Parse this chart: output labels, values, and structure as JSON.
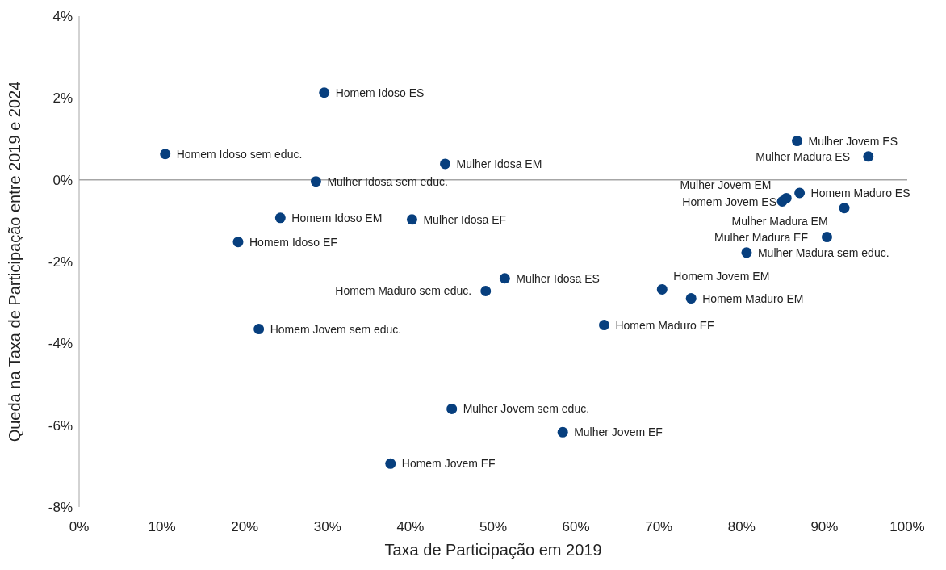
{
  "chart_data": {
    "type": "scatter",
    "xlabel": "Taxa de Participação em 2019",
    "ylabel": "Queda na Taxa de Participação entre 2019 e 2024",
    "series": [
      {
        "color": "#073f7e",
        "x": [
          29.6,
          10.4,
          44.2,
          28.6,
          24.3,
          40.2,
          19.2,
          51.4,
          49.1,
          21.7,
          70.4,
          73.9,
          63.4,
          45.0,
          58.4,
          37.6,
          80.6,
          90.3,
          86.7,
          95.3,
          87.0,
          92.4,
          84.9,
          85.4
        ],
        "values": [
          2.13,
          0.63,
          0.39,
          -0.04,
          -0.93,
          -0.97,
          -1.52,
          -2.41,
          -2.72,
          -3.65,
          -2.68,
          -2.9,
          -3.55,
          -5.6,
          -6.17,
          -6.94,
          -1.78,
          -1.4,
          0.95,
          0.57,
          -0.32,
          -0.69,
          -0.53,
          -0.45
        ]
      }
    ],
    "annotations": [
      {
        "text": "Homem Idoso ES",
        "x": 29.6,
        "y": 2.13
      },
      {
        "text": "Homem Idoso sem educ.",
        "x": 10.4,
        "y": 0.63
      },
      {
        "text": "Mulher Idosa EM",
        "x": 44.2,
        "y": 0.39
      },
      {
        "text": "Mulher Idosa sem educ.",
        "x": 28.6,
        "y": -0.04
      },
      {
        "text": "Homem Idoso EM",
        "x": 24.3,
        "y": -0.93
      },
      {
        "text": "Mulher Idosa EF",
        "x": 40.2,
        "y": -0.97
      },
      {
        "text": "Homem Idoso EF",
        "x": 19.2,
        "y": -1.52
      },
      {
        "text": "Mulher Idosa ES",
        "x": 51.4,
        "y": -2.41
      },
      {
        "text": "Homem Maduro sem educ.",
        "x": 49.1,
        "y": -2.72
      },
      {
        "text": "Homem Jovem sem educ.",
        "x": 21.7,
        "y": -3.65
      },
      {
        "text": "Homem Jovem EM",
        "x": 70.4,
        "y": -2.68
      },
      {
        "text": "Homem Maduro EM",
        "x": 73.9,
        "y": -2.9
      },
      {
        "text": "Homem Maduro EF",
        "x": 63.4,
        "y": -3.55
      },
      {
        "text": "Mulher Jovem sem educ.",
        "x": 45.0,
        "y": -5.6
      },
      {
        "text": "Mulher Jovem EF",
        "x": 58.4,
        "y": -6.17
      },
      {
        "text": "Homem Jovem EF",
        "x": 37.6,
        "y": -6.94
      },
      {
        "text": "Mulher Madura sem educ.",
        "x": 80.6,
        "y": -1.78
      },
      {
        "text": "Mulher Madura EF",
        "x": 90.3,
        "y": -1.4
      },
      {
        "text": "Mulher Jovem ES",
        "x": 86.7,
        "y": 0.95
      },
      {
        "text": "Mulher Madura ES",
        "x": 95.3,
        "y": 0.57
      },
      {
        "text": "Homem Maduro ES",
        "x": 87.0,
        "y": -0.32
      },
      {
        "text": "Mulher Madura EM",
        "x": 92.4,
        "y": -0.69
      },
      {
        "text": "Homem Jovem ES",
        "x": 84.9,
        "y": -0.53
      },
      {
        "text": "Mulher Jovem EM",
        "x": 85.4,
        "y": -0.45
      }
    ],
    "xlim": [
      0,
      100
    ],
    "xticks": [
      {
        "value": 0,
        "label": "0%"
      },
      {
        "value": 10,
        "label": "10%"
      },
      {
        "value": 20,
        "label": "20%"
      },
      {
        "value": 30,
        "label": "30%"
      },
      {
        "value": 40,
        "label": "40%"
      },
      {
        "value": 50,
        "label": "50%"
      },
      {
        "value": 60,
        "label": "60%"
      },
      {
        "value": 70,
        "label": "70%"
      },
      {
        "value": 80,
        "label": "80%"
      },
      {
        "value": 90,
        "label": "90%"
      },
      {
        "value": 100,
        "label": "100%"
      }
    ],
    "ylim": [
      -8,
      4
    ],
    "yticks": [
      {
        "value": -8,
        "label": "-8%"
      },
      {
        "value": -6,
        "label": "-6%"
      },
      {
        "value": -4,
        "label": "-4%"
      },
      {
        "value": -2,
        "label": "-2%"
      },
      {
        "value": 0,
        "label": "0%"
      },
      {
        "value": 2,
        "label": "2%"
      },
      {
        "value": 4,
        "label": "4%"
      }
    ],
    "ref_lines": [
      {
        "axis": "y",
        "value": 0,
        "color": "#a6a6a6"
      }
    ],
    "grid": false,
    "legend": false,
    "marker": "circle"
  }
}
